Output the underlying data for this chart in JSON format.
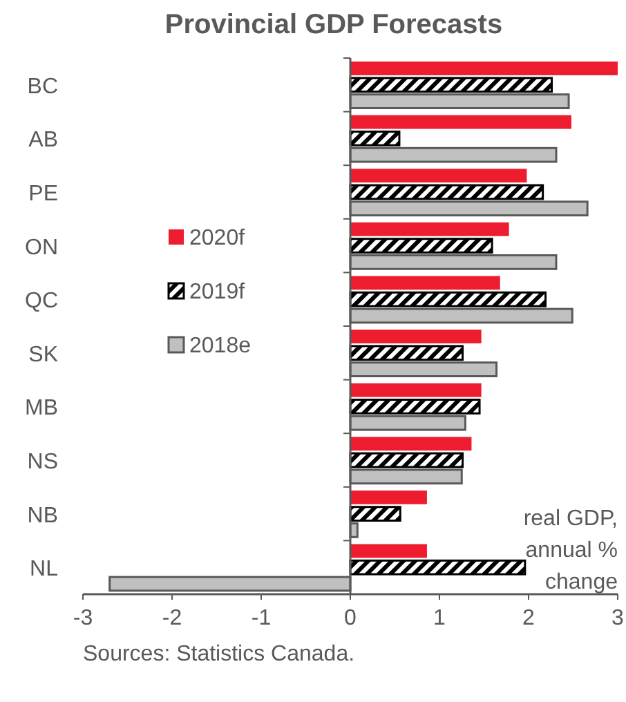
{
  "chart_data": {
    "type": "bar",
    "orientation": "horizontal",
    "title": "Provincial GDP Forecasts",
    "categories": [
      "BC",
      "AB",
      "PE",
      "ON",
      "QC",
      "SK",
      "MB",
      "NS",
      "NB",
      "NL"
    ],
    "series": [
      {
        "name": "2020f",
        "color": "#ed1c2e",
        "values": [
          3.0,
          2.48,
          1.98,
          1.78,
          1.68,
          1.47,
          1.47,
          1.36,
          0.86,
          0.86
        ]
      },
      {
        "name": "2019f",
        "color": "#000000",
        "values": [
          2.26,
          0.55,
          2.16,
          1.59,
          2.19,
          1.26,
          1.45,
          1.26,
          0.56,
          1.96
        ]
      },
      {
        "name": "2018e",
        "color": "#c0c0c0",
        "values": [
          2.45,
          2.31,
          2.66,
          2.31,
          2.49,
          1.64,
          1.29,
          1.25,
          0.08,
          -2.7
        ]
      }
    ],
    "xlim": [
      -3,
      3
    ],
    "xticks": [
      -3,
      -2,
      -1,
      0,
      1,
      2,
      3
    ],
    "legend": "left",
    "annotations": [
      "real GDP, annual % change",
      "Sources: Statistics Canada."
    ]
  }
}
